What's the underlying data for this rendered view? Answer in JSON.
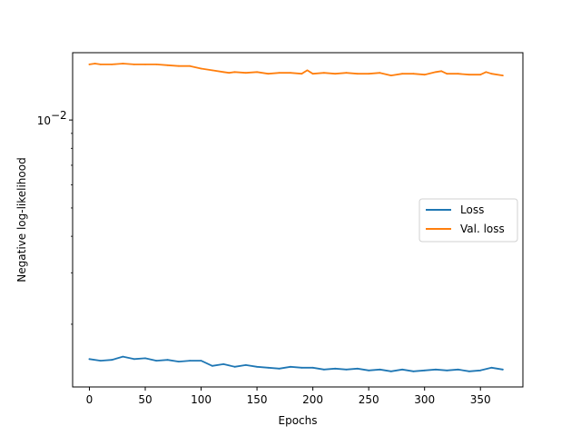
{
  "chart_data": {
    "type": "line",
    "title": "",
    "xlabel": "Epochs",
    "ylabel": "Negative log-likelihood",
    "y_scale": "log",
    "xlim": [
      -15,
      388
    ],
    "ylim": [
      0.00122,
      0.017
    ],
    "x_ticks": [
      0,
      50,
      100,
      150,
      200,
      250,
      300,
      350
    ],
    "x_tick_labels": [
      "0",
      "50",
      "100",
      "150",
      "200",
      "250",
      "300",
      "350"
    ],
    "y_ticks": [
      0.01
    ],
    "y_tick_labels": [
      "10^-2"
    ],
    "y_tick_label_base": "10",
    "y_tick_label_exponent": "−2",
    "grid": false,
    "legend_position": "center-right",
    "legend": [
      "Loss",
      "Val. loss"
    ],
    "series": [
      {
        "name": "Loss",
        "color": "#1f77b4",
        "x": [
          0,
          10,
          20,
          30,
          40,
          50,
          60,
          70,
          80,
          90,
          100,
          110,
          120,
          130,
          140,
          150,
          160,
          170,
          180,
          190,
          200,
          210,
          220,
          230,
          240,
          250,
          260,
          270,
          280,
          290,
          300,
          310,
          320,
          330,
          340,
          350,
          360,
          370
        ],
        "y": [
          0.00152,
          0.0015,
          0.00151,
          0.00155,
          0.00152,
          0.00153,
          0.0015,
          0.00151,
          0.00149,
          0.0015,
          0.0015,
          0.00144,
          0.00146,
          0.00143,
          0.00145,
          0.00143,
          0.00142,
          0.00141,
          0.00143,
          0.00142,
          0.00142,
          0.0014,
          0.00141,
          0.0014,
          0.00141,
          0.00139,
          0.0014,
          0.00138,
          0.0014,
          0.00138,
          0.00139,
          0.0014,
          0.00139,
          0.0014,
          0.00138,
          0.00139,
          0.00142,
          0.0014
        ]
      },
      {
        "name": "Val. loss",
        "color": "#ff7f0e",
        "x": [
          0,
          5,
          10,
          20,
          30,
          40,
          50,
          60,
          70,
          80,
          90,
          100,
          110,
          120,
          125,
          130,
          140,
          150,
          160,
          170,
          180,
          190,
          195,
          200,
          210,
          220,
          230,
          240,
          250,
          260,
          270,
          280,
          290,
          300,
          310,
          315,
          320,
          330,
          340,
          350,
          355,
          360,
          370
        ],
        "y": [
          0.0155,
          0.0156,
          0.0155,
          0.0155,
          0.0156,
          0.0155,
          0.0155,
          0.0155,
          0.0154,
          0.0153,
          0.0153,
          0.015,
          0.0148,
          0.0146,
          0.0145,
          0.0146,
          0.0145,
          0.0146,
          0.0144,
          0.0145,
          0.0145,
          0.0144,
          0.0148,
          0.0144,
          0.0145,
          0.0144,
          0.0145,
          0.0144,
          0.0144,
          0.0145,
          0.0142,
          0.0144,
          0.0144,
          0.0143,
          0.0146,
          0.0147,
          0.0144,
          0.0144,
          0.0143,
          0.0143,
          0.0146,
          0.0144,
          0.0142
        ]
      }
    ]
  }
}
